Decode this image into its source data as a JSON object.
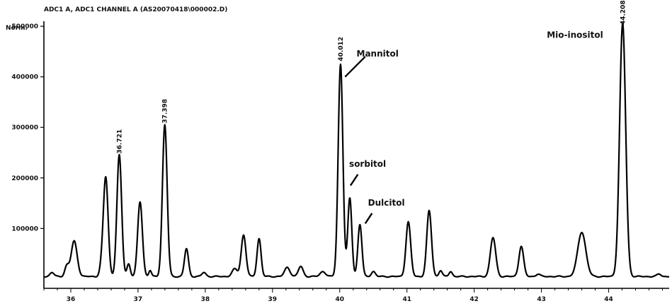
{
  "chart_data": {
    "type": "line",
    "title": "ADC1 A, ADC1 CHANNEL A (AS20070418\\000002.D)",
    "ylabel": "Norm.",
    "xlabel": "",
    "xlim": [
      35.6,
      44.9
    ],
    "ylim": [
      -10000,
      510000
    ],
    "x_ticks": [
      36,
      37,
      38,
      39,
      40,
      41,
      42,
      43,
      44
    ],
    "x_tick_labels": [
      "36",
      "37",
      "38",
      "39",
      "40",
      "41",
      "42",
      "43",
      "44"
    ],
    "y_ticks": [
      100000,
      200000,
      300000,
      400000,
      500000
    ],
    "y_tick_labels": [
      "100000",
      "200000",
      "300000",
      "400000",
      "500000"
    ],
    "baseline": 5000,
    "peaks": [
      {
        "x": 35.72,
        "h": 8000,
        "w": 0.03
      },
      {
        "x": 35.94,
        "h": 20000,
        "w": 0.03
      },
      {
        "x": 36.05,
        "h": 70000,
        "w": 0.045
      },
      {
        "x": 36.46,
        "h": 18000,
        "w": 0.03
      },
      {
        "x": 36.52,
        "h": 195000,
        "w": 0.035
      },
      {
        "x": 36.721,
        "h": 240000,
        "w": 0.035
      },
      {
        "x": 36.86,
        "h": 25000,
        "w": 0.025
      },
      {
        "x": 37.03,
        "h": 148000,
        "w": 0.035
      },
      {
        "x": 37.18,
        "h": 12000,
        "w": 0.02
      },
      {
        "x": 37.398,
        "h": 300000,
        "w": 0.035
      },
      {
        "x": 37.72,
        "h": 55000,
        "w": 0.03
      },
      {
        "x": 37.98,
        "h": 8000,
        "w": 0.03
      },
      {
        "x": 38.44,
        "h": 15000,
        "w": 0.04
      },
      {
        "x": 38.57,
        "h": 82000,
        "w": 0.035
      },
      {
        "x": 38.8,
        "h": 75000,
        "w": 0.03
      },
      {
        "x": 39.22,
        "h": 18000,
        "w": 0.04
      },
      {
        "x": 39.42,
        "h": 20000,
        "w": 0.035
      },
      {
        "x": 39.75,
        "h": 10000,
        "w": 0.04
      },
      {
        "x": 40.012,
        "h": 420000,
        "w": 0.035
      },
      {
        "x": 40.15,
        "h": 155000,
        "w": 0.03
      },
      {
        "x": 40.3,
        "h": 103000,
        "w": 0.03
      },
      {
        "x": 40.5,
        "h": 10000,
        "w": 0.03
      },
      {
        "x": 41.02,
        "h": 108000,
        "w": 0.035
      },
      {
        "x": 41.33,
        "h": 130000,
        "w": 0.035
      },
      {
        "x": 41.5,
        "h": 12000,
        "w": 0.025
      },
      {
        "x": 41.65,
        "h": 10000,
        "w": 0.025
      },
      {
        "x": 42.28,
        "h": 77000,
        "w": 0.04
      },
      {
        "x": 42.7,
        "h": 60000,
        "w": 0.035
      },
      {
        "x": 42.95,
        "h": 5000,
        "w": 0.03
      },
      {
        "x": 43.6,
        "h": 88000,
        "w": 0.06
      },
      {
        "x": 44.208,
        "h": 500000,
        "w": 0.045
      },
      {
        "x": 44.75,
        "h": 5000,
        "w": 0.03
      }
    ],
    "peak_labels": [
      {
        "text": "36.721",
        "x": 36.721,
        "y": 245000
      },
      {
        "text": "37.398",
        "x": 37.398,
        "y": 305000
      },
      {
        "text": "40.012",
        "x": 40.012,
        "y": 428000
      },
      {
        "text": "44.208",
        "x": 44.208,
        "y": 500000
      }
    ],
    "annotations": [
      {
        "text": "Mannitol",
        "x": 40.25,
        "y": 440000,
        "line_from": [
          40.38,
          440000
        ],
        "line_to": [
          40.08,
          400000
        ]
      },
      {
        "text": "sorbitol",
        "x": 40.14,
        "y": 222000,
        "line_from": [
          40.27,
          207000
        ],
        "line_to": [
          40.16,
          185000
        ]
      },
      {
        "text": "Dulcitol",
        "x": 40.42,
        "y": 145000,
        "line_from": [
          40.48,
          130000
        ],
        "line_to": [
          40.38,
          110000
        ]
      },
      {
        "text": "Mio-inositol",
        "x": 43.08,
        "y": 477000,
        "line_from": null,
        "line_to": null
      }
    ]
  }
}
